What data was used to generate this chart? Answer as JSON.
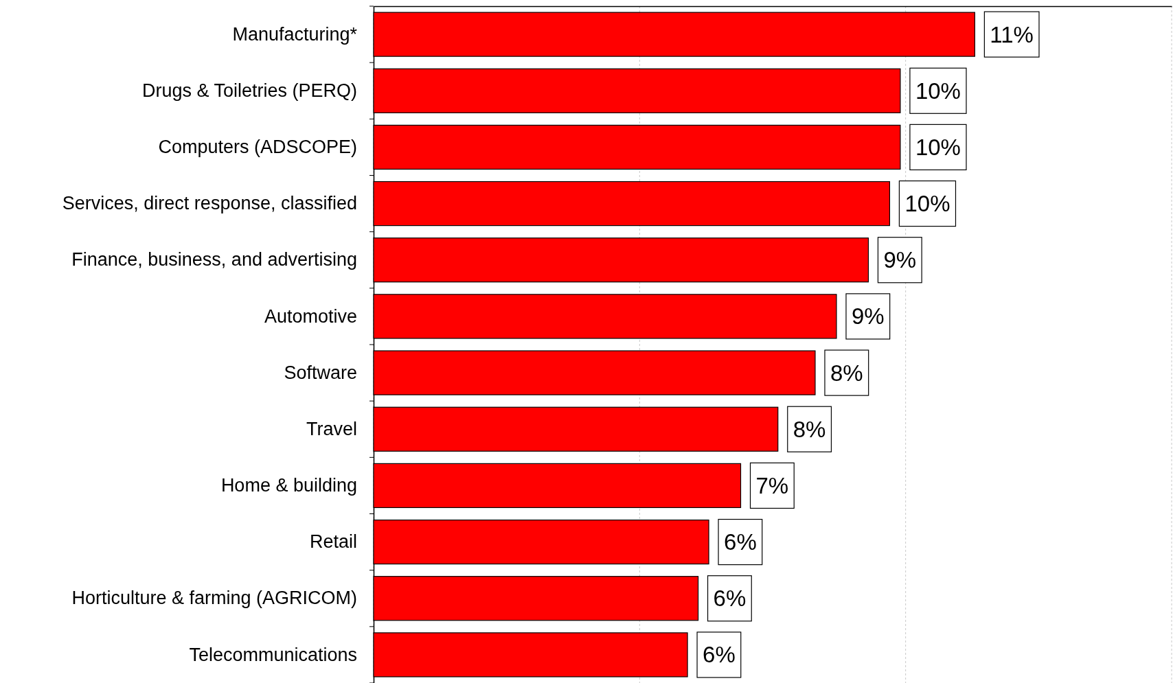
{
  "chart_data": {
    "type": "bar",
    "orientation": "horizontal",
    "categories": [
      "Manufacturing*",
      "Drugs & Toiletries (PERQ)",
      "Computers (ADSCOPE)",
      "Services, direct response, classified",
      "Finance, business, and advertising",
      "Automotive",
      "Software",
      "Travel",
      "Home & building",
      "Retail",
      "Horticulture & farming (AGRICOM)",
      "Telecommunications"
    ],
    "values": [
      11.3,
      9.9,
      9.9,
      9.7,
      9.3,
      8.7,
      8.3,
      7.6,
      6.9,
      6.3,
      6.1,
      5.9
    ],
    "value_labels": [
      "11%",
      "10%",
      "10%",
      "10%",
      "9%",
      "9%",
      "8%",
      "8%",
      "7%",
      "6%",
      "6%",
      "6%"
    ],
    "color": "#ff0000",
    "xlim": [
      0,
      15
    ],
    "xticks": [
      {
        "value": 0,
        "label": null
      },
      {
        "value": 5,
        "label": null
      },
      {
        "value": 10,
        "label": null
      },
      {
        "value": 15,
        "label": null
      }
    ],
    "grid": "x",
    "tick_labels": "y"
  }
}
